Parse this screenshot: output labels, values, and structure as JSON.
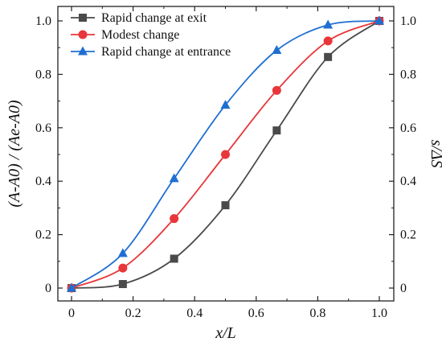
{
  "chart_data": {
    "type": "line",
    "xlabel": "x/L",
    "ylabel_left": "(A-A0) / (Ae-A0)",
    "ylabel_right": "s/ΔS",
    "xlim": [
      0,
      1.0
    ],
    "ylim": [
      0,
      1.0
    ],
    "x_ticks": [
      "0",
      "0.2",
      "0.4",
      "0.6",
      "0.8",
      "1.0"
    ],
    "y_ticks": [
      "0",
      "0.2",
      "0.4",
      "0.6",
      "0.8",
      "1.0"
    ],
    "legend_position": "top-left",
    "grid": false,
    "series": [
      {
        "name": "Rapid change at exit",
        "color": "#4a4a4a",
        "marker": "square",
        "x": [
          0,
          0.1667,
          0.3333,
          0.5,
          0.6667,
          0.8333,
          1.0
        ],
        "y": [
          0,
          0.015,
          0.11,
          0.31,
          0.59,
          0.865,
          1.0
        ]
      },
      {
        "name": "Modest change",
        "color": "#e8363a",
        "marker": "circle",
        "x": [
          0,
          0.1667,
          0.3333,
          0.5,
          0.6667,
          0.8333,
          1.0
        ],
        "y": [
          0,
          0.075,
          0.26,
          0.5,
          0.74,
          0.925,
          1.0
        ]
      },
      {
        "name": "Rapid change at entrance",
        "color": "#1f6fd1",
        "marker": "triangle",
        "x": [
          0,
          0.1667,
          0.3333,
          0.5,
          0.6667,
          0.8333,
          1.0
        ],
        "y": [
          0,
          0.13,
          0.41,
          0.685,
          0.89,
          0.985,
          1.0
        ]
      }
    ]
  }
}
